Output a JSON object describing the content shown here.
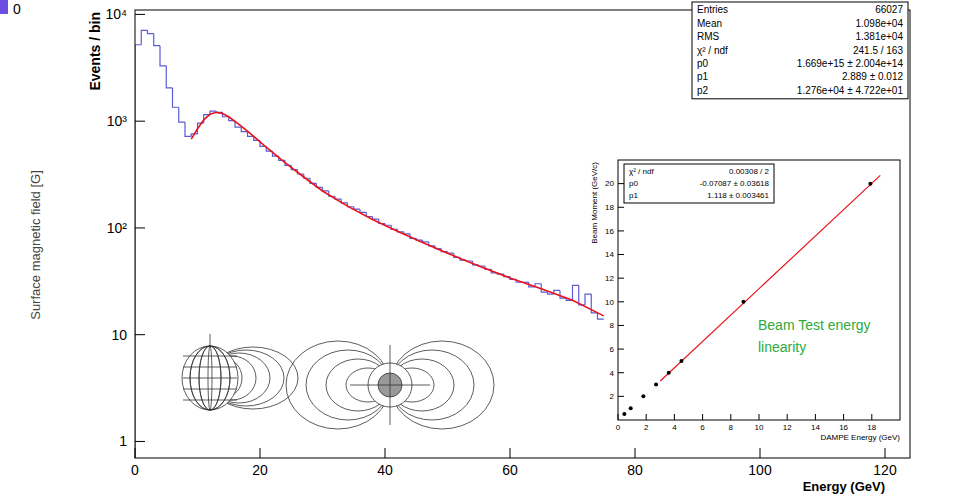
{
  "chart_data": [
    {
      "type": "histogram",
      "x_label": "Energy (GeV)",
      "y_label": "Events / bin",
      "annotations": [
        "0",
        "Surface magnetic field [G]"
      ],
      "bins": [
        0,
        1,
        2,
        3,
        4,
        5,
        6,
        7,
        8,
        9,
        10,
        11,
        12,
        13,
        14,
        15,
        16,
        17,
        18,
        19,
        20,
        21,
        22,
        23,
        24,
        25,
        26,
        27,
        28,
        29,
        30,
        31,
        32,
        33,
        34,
        35,
        36,
        37,
        38,
        39,
        40,
        41,
        42,
        43,
        44,
        45,
        46,
        47,
        48,
        49,
        50,
        51,
        52,
        53,
        54,
        55,
        56,
        57,
        58,
        59,
        60,
        61,
        62,
        63,
        64,
        65,
        66,
        67,
        68,
        69,
        70,
        71,
        72,
        73,
        74,
        75
      ],
      "values": [
        5200,
        7100,
        6600,
        5100,
        3300,
        2050,
        1350,
        980,
        720,
        760,
        960,
        1150,
        1240,
        1210,
        1100,
        1010,
        880,
        800,
        720,
        660,
        580,
        525,
        470,
        430,
        385,
        352,
        320,
        292,
        262,
        240,
        222,
        198,
        186,
        172,
        158,
        150,
        140,
        128,
        121,
        110,
        106,
        97,
        92,
        88,
        80,
        77,
        74,
        68,
        64,
        60,
        58,
        53,
        50,
        49,
        45,
        44,
        41,
        38,
        37,
        35,
        33,
        31,
        31,
        28,
        30,
        25,
        24,
        26,
        22,
        21,
        29,
        19,
        24,
        16,
        14
      ],
      "color": "#5b5bd6",
      "fit": {
        "type": "line",
        "color": "#e8141c",
        "x": [
          9,
          10,
          11,
          12,
          13,
          14,
          15,
          17,
          19,
          21,
          24,
          27,
          30,
          34,
          38,
          42,
          46,
          50,
          55,
          60,
          65,
          70,
          75
        ],
        "values": [
          680,
          850,
          1030,
          1160,
          1210,
          1180,
          1100,
          900,
          720,
          570,
          410,
          300,
          222,
          160,
          120,
          93,
          73,
          58,
          44,
          34,
          27,
          21,
          15
        ]
      },
      "stats": {
        "rows": [
          [
            "Entries",
            "66027"
          ],
          [
            "Mean",
            "1.098e+04"
          ],
          [
            "RMS",
            "1.381e+04"
          ],
          [
            "χ² / ndf",
            "241.5 / 163"
          ],
          [
            "p0",
            "1.669e+15 ± 2.004e+14"
          ],
          [
            "p1",
            "2.889 ± 0.012"
          ],
          [
            "p2",
            "1.276e+04 ± 4.722e+01"
          ]
        ]
      },
      "log": "y",
      "xlim": [
        0,
        124
      ],
      "xticks": [
        0,
        20,
        40,
        60,
        80,
        100,
        120
      ],
      "ylim": [
        0.7,
        11000
      ],
      "yticks": [
        1,
        10,
        {
          "value": 100,
          "label": "10²"
        },
        {
          "value": 1000,
          "label": "10³"
        },
        {
          "value": 10000,
          "label": "10⁴"
        }
      ]
    },
    {
      "type": "scatter",
      "x_label": "DAMPE Energy (GeV)",
      "y_label": "Beam Moment (GeV/c)",
      "annotation": "Beam Test energy linearity",
      "x": [
        0.45,
        0.9,
        1.8,
        2.7,
        3.6,
        4.5,
        8.9,
        17.9
      ],
      "values": [
        0.5,
        1,
        2,
        3,
        4,
        5,
        10,
        20
      ],
      "color": "#000000",
      "marker": "circle",
      "fit": {
        "type": "line",
        "color": "#e8141c",
        "x": [
          3.0,
          18.6
        ],
        "values": [
          3.3,
          20.7
        ]
      },
      "stats": {
        "rows": [
          [
            "χ² / ndf",
            "0.00308 / 2"
          ],
          [
            "p0",
            "-0.07087 ± 0.03618"
          ],
          [
            "p1",
            "1.118 ± 0.003461"
          ]
        ]
      },
      "xlim": [
        0,
        20
      ],
      "xticks": [
        0,
        2,
        4,
        6,
        8,
        10,
        12,
        14,
        16,
        18
      ],
      "ylim": [
        0,
        22
      ],
      "yticks": [
        2,
        4,
        6,
        8,
        10,
        12,
        14,
        16,
        18,
        20
      ]
    }
  ]
}
